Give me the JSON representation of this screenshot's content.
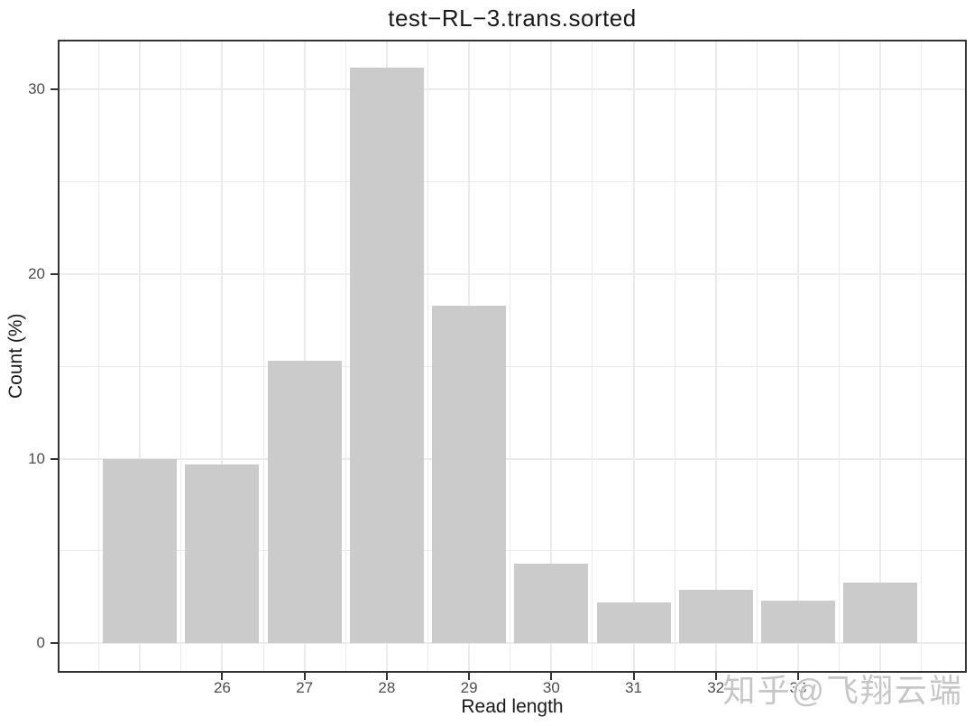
{
  "title": "test−RL−3.trans.sorted",
  "watermark": "知乎@飞翔云端",
  "chart_data": {
    "type": "bar",
    "title": "test−RL−3.trans.sorted",
    "xlabel": "Read length",
    "ylabel": "Count (%)",
    "x": [
      25,
      26,
      27,
      28,
      29,
      30,
      31,
      32,
      33,
      34
    ],
    "values": [
      10.0,
      9.7,
      15.3,
      31.2,
      18.3,
      4.3,
      2.2,
      2.9,
      2.3,
      3.3
    ],
    "bar_width": 0.9,
    "x_tick_labels": [
      26,
      27,
      28,
      29,
      30,
      31,
      32,
      33
    ],
    "y_tick_labels": [
      0,
      10,
      20,
      30
    ],
    "x_grid_major": [
      25,
      26,
      27,
      28,
      29,
      30,
      31,
      32,
      33,
      34
    ],
    "x_grid_minor": [
      24.5,
      25.5,
      26.5,
      27.5,
      28.5,
      29.5,
      30.5,
      31.5,
      32.5,
      33.5,
      34.5
    ],
    "y_grid_major": [
      0,
      10,
      20,
      30
    ],
    "y_grid_minor": [
      5,
      15,
      25
    ],
    "xlim": [
      24.0,
      35.05
    ],
    "ylim": [
      -1.6,
      32.7
    ],
    "grid": "on",
    "legend": "none",
    "colors": {
      "bar_fill": "#cbcbcb",
      "grid": "#ebebeb",
      "panel_border": "#333333",
      "tick_mark": "#333333",
      "tick_label": "#4d4d4d",
      "title_text": "#1a1a1a",
      "axis_title_text": "#1a1a1a",
      "watermark": "#bdbdbd",
      "background": "#ffffff"
    }
  }
}
